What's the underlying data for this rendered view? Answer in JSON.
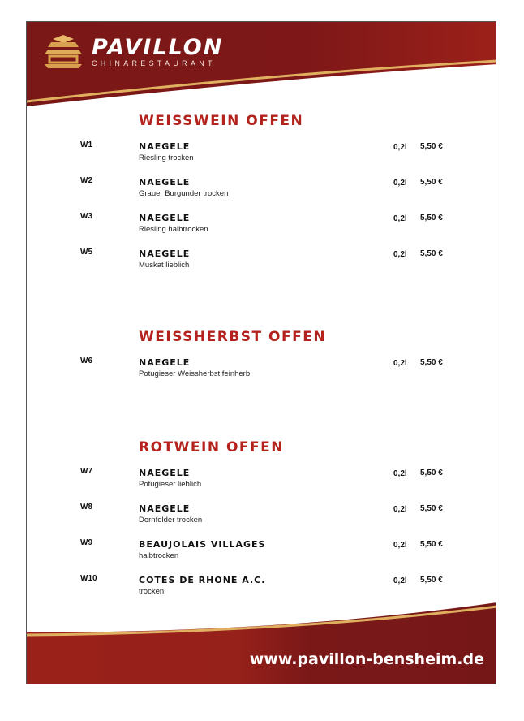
{
  "brand": {
    "title": "PAVILLON",
    "subtitle": "CHINARESTAURANT",
    "primary_color": "#8b1a1a",
    "accent_color": "#e0b060"
  },
  "sections": [
    {
      "title": "WEISSWEIN OFFEN",
      "items": [
        {
          "code": "W1",
          "name": "NAEGELE",
          "desc": "Riesling trocken",
          "volume": "0,2l",
          "price": "5,50 €"
        },
        {
          "code": "W2",
          "name": "NAEGELE",
          "desc": "Grauer Burgunder trocken",
          "volume": "0,2l",
          "price": "5,50 €"
        },
        {
          "code": "W3",
          "name": "NAEGELE",
          "desc": "Riesling halbtrocken",
          "volume": "0,2l",
          "price": "5,50 €"
        },
        {
          "code": "W5",
          "name": "NAEGELE",
          "desc": "Muskat lieblich",
          "volume": "0,2l",
          "price": "5,50 €"
        }
      ]
    },
    {
      "title": "WEISSHERBST OFFEN",
      "items": [
        {
          "code": "W6",
          "name": "NAEGELE",
          "desc": "Potugieser Weissherbst feinherb",
          "volume": "0,2l",
          "price": "5,50 €"
        }
      ]
    },
    {
      "title": "ROTWEIN OFFEN",
      "items": [
        {
          "code": "W7",
          "name": "NAEGELE",
          "desc": "Potugieser lieblich",
          "volume": "0,2l",
          "price": "5,50 €"
        },
        {
          "code": "W8",
          "name": "NAEGELE",
          "desc": "Dornfelder trocken",
          "volume": "0,2l",
          "price": "5,50 €"
        },
        {
          "code": "W9",
          "name": "BEAUJOLAIS VILLAGES",
          "desc": "halbtrocken",
          "volume": "0,2l",
          "price": "5,50 €"
        },
        {
          "code": "W10",
          "name": "COTES DE RHONE A.C.",
          "desc": "trocken",
          "volume": "0,2l",
          "price": "5,50 €"
        }
      ]
    }
  ],
  "footer": {
    "url": "www.pavillon-bensheim.de"
  }
}
